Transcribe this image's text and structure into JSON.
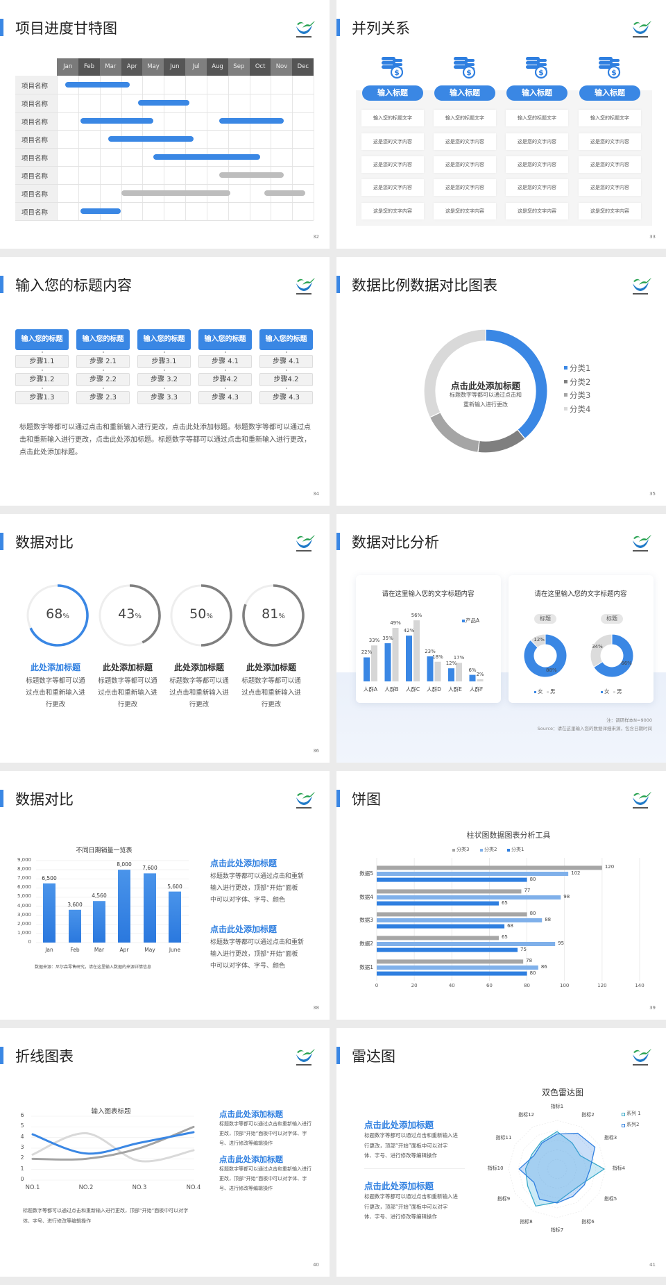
{
  "slides": [
    {
      "kind": "gantt",
      "title": "项目进度甘特图",
      "page": "32",
      "months": [
        "Jan",
        "Feb",
        "Mar",
        "Apr",
        "May",
        "Jun",
        "Jul",
        "Aug",
        "Sep",
        "Oct",
        "Nov",
        "Dec"
      ],
      "colors": {
        "active": "#3a87e4",
        "planned": "#bdbdbd"
      },
      "rows": [
        {
          "label": "项目名称",
          "bars": [
            {
              "start_month": 0.4,
              "end_month": 3.4,
              "status": "active"
            }
          ]
        },
        {
          "label": "项目名称",
          "bars": [
            {
              "start_month": 3.8,
              "end_month": 6.2,
              "status": "active"
            }
          ]
        },
        {
          "label": "项目名称",
          "bars": [
            {
              "start_month": 1.1,
              "end_month": 4.5,
              "status": "active"
            },
            {
              "start_month": 7.6,
              "end_month": 10.6,
              "status": "active"
            }
          ]
        },
        {
          "label": "项目名称",
          "bars": [
            {
              "start_month": 2.4,
              "end_month": 6.4,
              "status": "active"
            }
          ]
        },
        {
          "label": "项目名称",
          "bars": [
            {
              "start_month": 4.5,
              "end_month": 9.5,
              "status": "active"
            }
          ]
        },
        {
          "label": "项目名称",
          "bars": [
            {
              "start_month": 7.6,
              "end_month": 10.6,
              "status": "planned"
            }
          ]
        },
        {
          "label": "项目名称",
          "bars": [
            {
              "start_month": 3.0,
              "end_month": 8.1,
              "status": "planned"
            },
            {
              "start_month": 9.7,
              "end_month": 11.6,
              "status": "planned"
            }
          ]
        },
        {
          "label": "项目名称",
          "bars": [
            {
              "start_month": 1.1,
              "end_month": 3.0,
              "status": "active"
            }
          ]
        }
      ]
    },
    {
      "kind": "parallel",
      "title": "并列关系",
      "page": "33",
      "columns": [
        {
          "icon": "coin-stack-icon",
          "button": "输入标题",
          "cells": [
            "输入您的标题文字",
            "这是您的文字内容",
            "这是您的文字内容",
            "这是您的文字内容",
            "这是您的文字内容"
          ]
        },
        {
          "icon": "coin-stack-icon",
          "button": "输入标题",
          "cells": [
            "输入您的标题文字",
            "这是您的文字内容",
            "这是您的文字内容",
            "这是您的文字内容",
            "这是您的文字内容"
          ]
        },
        {
          "icon": "coin-stack-icon",
          "button": "输入标题",
          "cells": [
            "输入您的标题文字",
            "这是您的文字内容",
            "这是您的文字内容",
            "这是您的文字内容",
            "这是您的文字内容"
          ]
        },
        {
          "icon": "coin-stack-icon",
          "button": "输入标题",
          "cells": [
            "输入您的标题文字",
            "这是您的文字内容",
            "这是您的文字内容",
            "这是您的文字内容",
            "这是您的文字内容"
          ]
        }
      ]
    },
    {
      "kind": "steps",
      "title": "输入您的标题内容",
      "page": "34",
      "columns": [
        {
          "header": "输入您的标题",
          "steps": [
            "步骤1.1",
            "步骤1.2",
            "步骤1.3"
          ]
        },
        {
          "header": "输入您的标题",
          "steps": [
            "步骤 2.1",
            "步骤 2.2",
            "步骤 2.3"
          ]
        },
        {
          "header": "输入您的标题",
          "steps": [
            "步骤3.1",
            "步骤 3.2",
            "步骤 3.3"
          ]
        },
        {
          "header": "输入您的标题",
          "steps": [
            "步骤 4.1",
            "步骤4.2",
            "步骤 4.3"
          ]
        },
        {
          "header": "输入您的标题",
          "steps": [
            "步骤 4.1",
            "步骤4.2",
            "步骤 4.3"
          ]
        }
      ],
      "paragraph": [
        "标题数字等都可以通过点击和重新输入进行更改，点击此处添加标题。标题数字等都可以通过点",
        "击和重新输入进行更改，点击此处添加标题。标题数字等都可以通过点击和重新输入进行更改，",
        "点击此处添加标题。"
      ]
    },
    {
      "kind": "donut",
      "title": "数据比例数据对比图表",
      "page": "35",
      "center_title": "点击此处添加标题",
      "center_text": [
        "标题数字等都可以通过点击和",
        "重新输入进行更改"
      ],
      "chart": 0
    },
    {
      "kind": "rings",
      "title": "数据对比",
      "page": "36",
      "unit": "%",
      "colors": {
        "highlight": "#3a87e4",
        "normal": "#7f7f7f",
        "track": "#eeeeee"
      },
      "items": [
        {
          "value": 68,
          "heading": "此处添加标题",
          "highlight": true,
          "text": [
            "标题数字等都可以通",
            "过点击和重新输入进",
            "行更改"
          ]
        },
        {
          "value": 43,
          "heading": "此处添加标题",
          "highlight": false,
          "text": [
            "标题数字等都可以通",
            "过点击和重新输入进",
            "行更改"
          ]
        },
        {
          "value": 50,
          "heading": "此处添加标题",
          "highlight": false,
          "text": [
            "标题数字等都可以通",
            "过点击和重新输入进",
            "行更改"
          ]
        },
        {
          "value": 81,
          "heading": "此处添加标题",
          "highlight": false,
          "text": [
            "标题数字等都可以通",
            "过点击和重新输入进",
            "行更改"
          ]
        }
      ]
    },
    {
      "kind": "analysis",
      "title": "数据对比分析",
      "page": "37",
      "cards": [
        {
          "title": "请在这里输入您的文字标题内容",
          "chart": 1
        },
        {
          "title": "请在这里输入您的文字标题内容",
          "donuts": [
            {
              "pill": "标题",
              "chart": 2
            },
            {
              "pill": "标题",
              "chart": 3
            }
          ]
        }
      ],
      "notes": [
        "注：调研样本N=9000",
        "Source：请在这里输入您的数据详细来源，包含日期时间"
      ]
    },
    {
      "kind": "column",
      "title": "数据对比",
      "page": "38",
      "chart": 4,
      "source": "数据来源：尼尔森零售研究，请在这里输入数据的来源详情信息",
      "blocks": [
        {
          "heading": "点击此处添加标题",
          "lines": [
            "标题数字等都可以通过点击和重新",
            "输入进行更改，顶部“开始”面板",
            "中可以对字体、字号、颜色"
          ]
        },
        {
          "heading": "点击此处添加标题",
          "lines": [
            "标题数字等都可以通过点击和重新",
            "输入进行更改，顶部“开始”面板",
            "中可以对字体、字号、颜色"
          ]
        }
      ]
    },
    {
      "kind": "hbar",
      "title": "饼图",
      "page": "39",
      "chart": 5
    },
    {
      "kind": "line",
      "title": "折线图表",
      "page": "40",
      "chart": 6,
      "bottom_text": [
        "标题数字等都可以通过点击和重新输入进行更改，顶部“开始”面板中可以对字",
        "体、字号、进行修改等编辑操作"
      ],
      "blocks": [
        {
          "heading": "点击此处添加标题",
          "lines": [
            "标题数字等都可以通过点击和重新输入进行",
            "更改，顶部“开始”面板中可以对字体、字",
            "号、进行修改等编辑操作"
          ]
        },
        {
          "heading": "点击此处添加标题",
          "lines": [
            "标题数字等都可以通过点击和重新输入进行",
            "更改，顶部“开始”面板中可以对字体、字",
            "号、进行修改等编辑操作"
          ]
        }
      ]
    },
    {
      "kind": "radar",
      "title": "雷达图",
      "page": "41",
      "chart": 7,
      "blocks": [
        {
          "heading": "点击此处添加标题",
          "lines": [
            "标题数字等都可以通过点击和重新输入进",
            "行更改，顶部“开始”面板中可以对字",
            "体、字号、进行修改等编辑操作"
          ]
        },
        {
          "heading": "点击此处添加标题",
          "lines": [
            "标题数字等都可以通过点击和重新输入进",
            "行更改，顶部“开始”面板中可以对字",
            "体、字号、进行修改等编辑操作"
          ]
        }
      ]
    }
  ],
  "chart_data": [
    {
      "type": "pie",
      "donut": true,
      "legend": "right",
      "categories": [
        "分类1",
        "分类2",
        "分类3",
        "分类4"
      ],
      "values": [
        39,
        13,
        16,
        32
      ],
      "colors": [
        "#3a87e4",
        "#7f7f7f",
        "#a5a5a5",
        "#d9d9d9"
      ]
    },
    {
      "type": "bar",
      "legend": "top-right",
      "categories": [
        "人群A",
        "人群B",
        "人群C",
        "人群D",
        "人群E",
        "人群F"
      ],
      "series": [
        {
          "name": "产品A",
          "values": [
            22,
            35,
            42,
            23,
            12,
            6
          ],
          "color": "#3a87e4"
        },
        {
          "values": [
            33,
            49,
            56,
            18,
            17,
            2
          ],
          "color": "#d6d6d6"
        }
      ],
      "value_suffix": "%"
    },
    {
      "type": "pie",
      "donut": true,
      "legend": "bottom",
      "categories": [
        "女",
        "男"
      ],
      "values": [
        88,
        12
      ],
      "colors": [
        "#3a87e4",
        "#dcdcdc"
      ],
      "value_suffix": "%"
    },
    {
      "type": "pie",
      "donut": true,
      "legend": "bottom",
      "categories": [
        "女",
        "男"
      ],
      "values": [
        66,
        34
      ],
      "colors": [
        "#3a87e4",
        "#dcdcdc"
      ],
      "value_suffix": "%"
    },
    {
      "type": "bar",
      "title": "不同日期销量一览表",
      "categories": [
        "Jan",
        "Feb",
        "Mar",
        "Apr",
        "May",
        "June"
      ],
      "values": [
        6500,
        3600,
        4560,
        8000,
        7600,
        5600
      ],
      "value_labels": [
        "6,500",
        "3,600",
        "4,560",
        "8,000",
        "7,600",
        "5,600"
      ],
      "ylim": [
        0,
        9000
      ],
      "yticks": [
        "0",
        "1,000",
        "2,000",
        "3,000",
        "4,000",
        "5,000",
        "6,000",
        "7,000",
        "8,000",
        "9,000"
      ],
      "grid": true,
      "color": "#2f7fe0"
    },
    {
      "type": "bar",
      "orientation": "horizontal",
      "title": "柱状图数据图表分析工具",
      "categories": [
        "数据5",
        "数据4",
        "数据3",
        "数据2",
        "数据1"
      ],
      "series": [
        {
          "name": "分类3",
          "values": [
            120,
            77,
            80,
            65,
            78
          ],
          "color": "#a6a6a6"
        },
        {
          "name": "分类2",
          "values": [
            102,
            98,
            88,
            95,
            86
          ],
          "color": "#7fb0ea"
        },
        {
          "name": "分类1",
          "values": [
            80,
            65,
            68,
            75,
            80
          ],
          "color": "#2f7fe0"
        }
      ],
      "xlim": [
        0,
        140
      ],
      "xticks": [
        "0",
        "20",
        "40",
        "60",
        "80",
        "100",
        "120",
        "140"
      ],
      "legend": "top",
      "grid": true
    },
    {
      "type": "line",
      "smooth": true,
      "title": "输入图表标题",
      "x": [
        "NO.1",
        "NO.2",
        "NO.3",
        "NO.4"
      ],
      "series": [
        {
          "values": [
            4.3,
            2.5,
            3.5,
            4.5
          ],
          "color": "#3a87e4"
        },
        {
          "values": [
            2.0,
            2.0,
            3.0,
            5.0
          ],
          "color": "#a3a3a3"
        },
        {
          "values": [
            2.4,
            4.4,
            1.8,
            2.8
          ],
          "color": "#d9d9d9"
        }
      ],
      "ylim": [
        0,
        6
      ],
      "yticks": [
        "0",
        "1",
        "2",
        "3",
        "4",
        "5",
        "6"
      ],
      "grid": true
    },
    {
      "type": "radar",
      "title": "双色雷达图",
      "categories": [
        "指标1",
        "指标2",
        "指标3",
        "指标4",
        "指标5",
        "指标6",
        "指标7",
        "指标8",
        "指标9",
        "指标10",
        "指标11",
        "指标12"
      ],
      "series": [
        {
          "name": "系列 1",
          "values": [
            77,
            62,
            55,
            97,
            60,
            55,
            68,
            88,
            70,
            65,
            60,
            65
          ],
          "color": "#39a9c9"
        },
        {
          "name": "系列2",
          "values": [
            72,
            85,
            90,
            68,
            65,
            65,
            70,
            72,
            55,
            78,
            55,
            62
          ],
          "color": "#2f7fe0"
        }
      ],
      "rmax": 100,
      "legend": "top-right"
    }
  ]
}
